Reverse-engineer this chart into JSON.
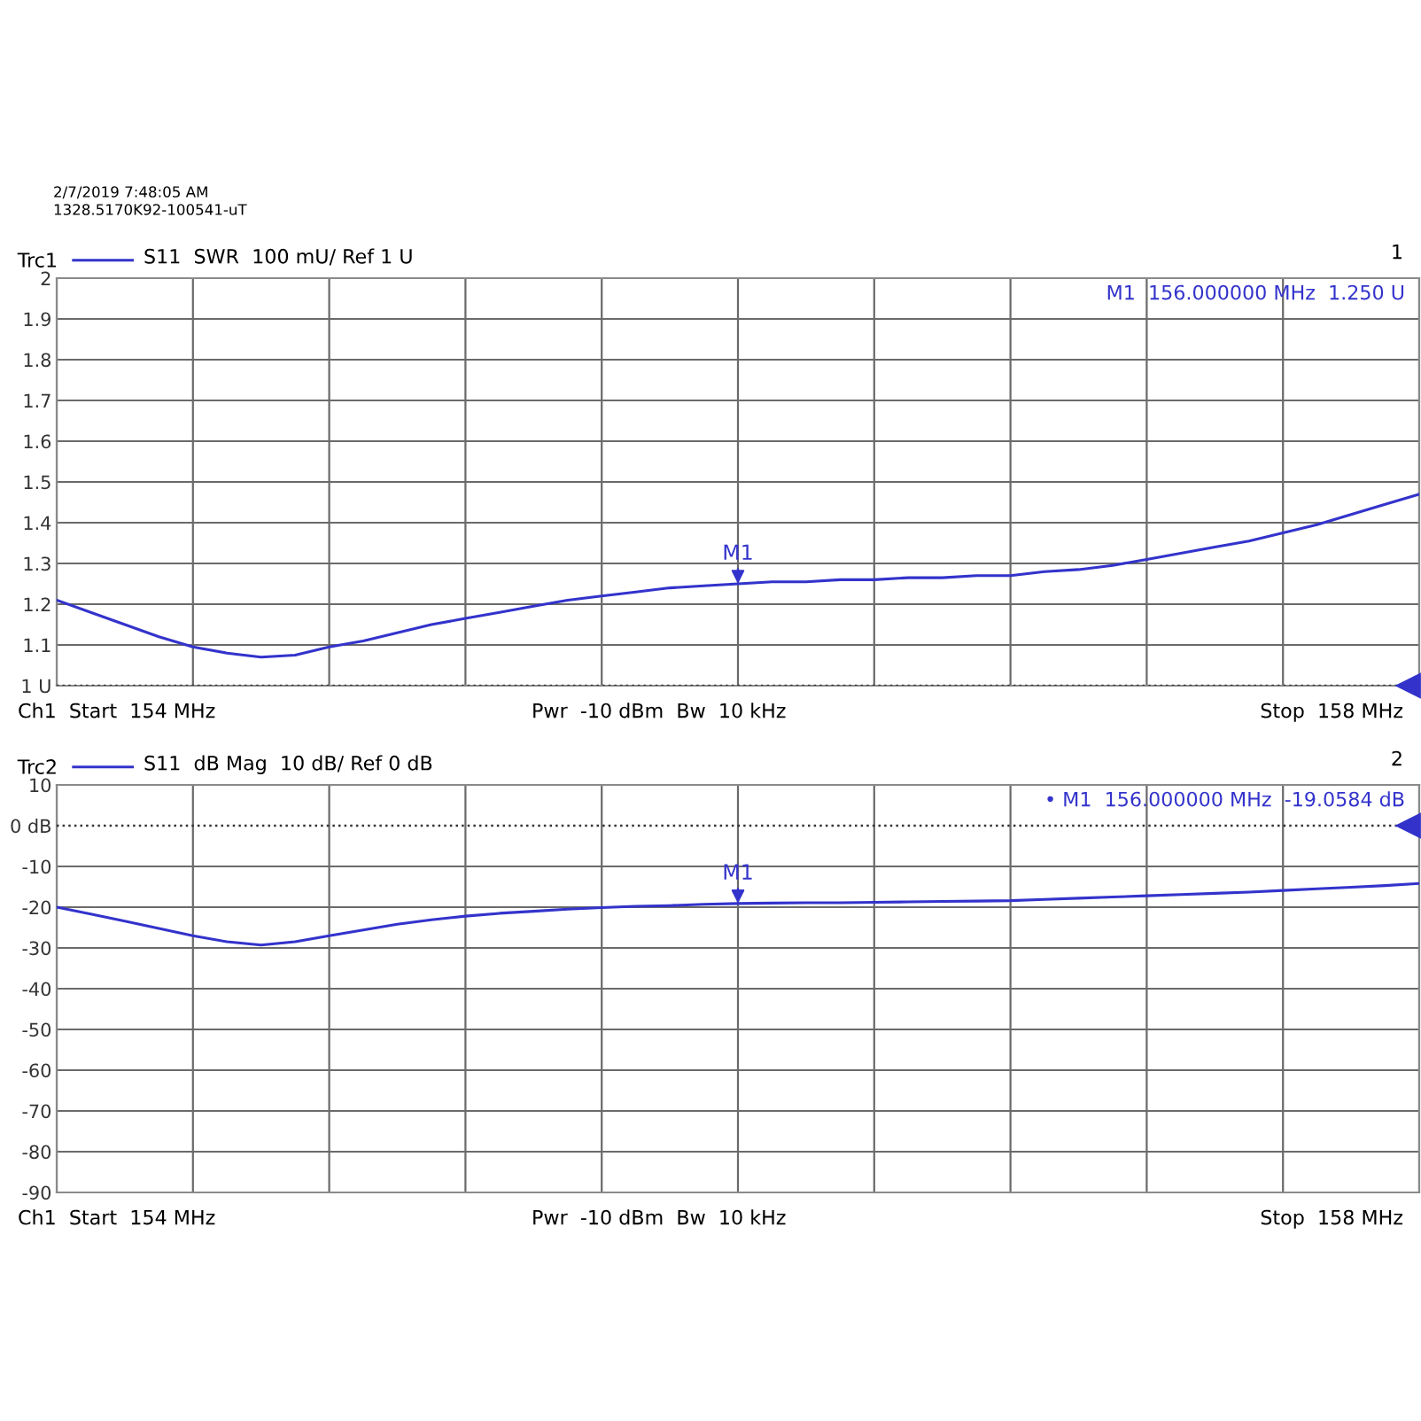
{
  "chart_data": [
    {
      "type": "line",
      "title": "S11  SWR  100 mU/ Ref 1 U",
      "categories": [
        null,
        null,
        null,
        null,
        null,
        null,
        null,
        null,
        null,
        null,
        null,
        null,
        null,
        null,
        null,
        null,
        null,
        null,
        null,
        null,
        null,
        null,
        null,
        null,
        null,
        null,
        null,
        null,
        null,
        null,
        null,
        null,
        null,
        null,
        null,
        null,
        null,
        null,
        null,
        null,
        null
      ],
      "series": [
        {
          "name": "Trc1",
          "color": "#3333cc",
          "values": [
            1.21,
            1.18,
            1.15,
            1.12,
            1.095,
            1.08,
            1.07,
            1.075,
            1.095,
            1.11,
            1.13,
            1.15,
            1.165,
            1.18,
            1.195,
            1.21,
            1.22,
            1.23,
            1.24,
            1.245,
            1.25,
            1.255,
            1.255,
            1.26,
            1.26,
            1.265,
            1.265,
            1.27,
            1.27,
            1.28,
            1.285,
            1.295,
            1.31,
            1.325,
            1.34,
            1.355,
            1.375,
            1.395,
            1.42,
            1.445,
            1.47
          ]
        }
      ],
      "ylim": [
        1,
        2
      ],
      "yticks": [
        {
          "value": 1,
          "label": "1 U"
        },
        1.1,
        1.2,
        1.3,
        1.4,
        1.5,
        1.6,
        1.7,
        1.8,
        1.9,
        2
      ],
      "tick_labels": "y",
      "grid": true,
      "legend": "top left",
      "line_style": "solid",
      "ref_lines": [
        {
          "axis": "y",
          "value": 1,
          "line_style": "dotted",
          "color": "#333333"
        }
      ],
      "annotations": [
        "2/7/2019 7:48:05 AM",
        "1328.5170K92-100541-uT",
        "1",
        {
          "text": "M1",
          "y": 1.25
        },
        "M1  156.000000 MHz  1.250 U",
        "Ch1  Start  154 MHz",
        "Pwr  -10 dBm  Bw  10 kHz",
        "Stop  158 MHz"
      ]
    },
    {
      "type": "line",
      "title": "S11  dB Mag  10 dB/ Ref 0 dB",
      "categories": [
        null,
        null,
        null,
        null,
        null,
        null,
        null,
        null,
        null,
        null,
        null,
        null,
        null,
        null,
        null,
        null,
        null,
        null,
        null,
        null,
        null,
        null,
        null,
        null,
        null,
        null,
        null,
        null,
        null,
        null,
        null,
        null,
        null,
        null,
        null,
        null,
        null,
        null,
        null,
        null,
        null
      ],
      "series": [
        {
          "name": "Trc2",
          "color": "#3333cc",
          "values": [
            -20,
            -21.7,
            -23.4,
            -25.2,
            -27,
            -28.5,
            -29.3,
            -28.5,
            -27,
            -25.6,
            -24.2,
            -23.1,
            -22.2,
            -21.5,
            -21,
            -20.5,
            -20.1,
            -19.8,
            -19.6,
            -19.3,
            -19.1,
            -19,
            -18.9,
            -18.9,
            -18.8,
            -18.7,
            -18.6,
            -18.5,
            -18.4,
            -18.1,
            -17.8,
            -17.5,
            -17.2,
            -16.9,
            -16.6,
            -16.3,
            -15.9,
            -15.5,
            -15.1,
            -14.7,
            -14.2
          ]
        }
      ],
      "ylim": [
        -90,
        10
      ],
      "yticks": [
        -90,
        -80,
        -70,
        -60,
        -50,
        -40,
        -30,
        -20,
        -10,
        {
          "value": 0,
          "label": "0 dB"
        },
        10
      ],
      "tick_labels": "y",
      "grid": true,
      "legend": "top left",
      "line_style": "solid",
      "ref_lines": [
        {
          "axis": "y",
          "value": 0,
          "line_style": "dotted",
          "color": "#333333"
        }
      ],
      "annotations": [
        "2",
        {
          "text": "M1",
          "y": -19.1
        },
        "• M1  156.000000 MHz  -19.0584 dB",
        "Ch1  Start  154 MHz",
        "Pwr  -10 dBm  Bw  10 kHz",
        "Stop  158 MHz"
      ]
    }
  ]
}
